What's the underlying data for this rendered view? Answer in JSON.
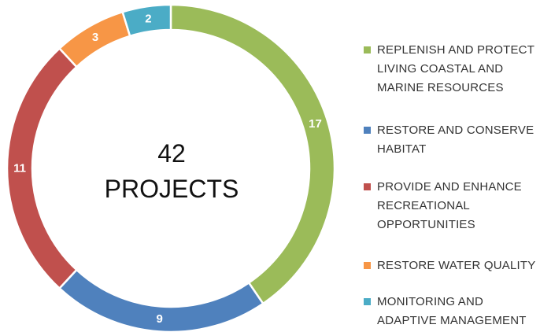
{
  "chart_data": {
    "type": "donut",
    "center_value": 42,
    "center_label": "PROJECTS",
    "categories": [
      "REPLENISH AND PROTECT LIVING COASTAL AND MARINE RESOURCES",
      "RESTORE AND CONSERVE HABITAT",
      "PROVIDE AND ENHANCE RECREATIONAL OPPORTUNITIES",
      "RESTORE WATER QUALITY",
      "MONITORING AND ADAPTIVE MANAGEMENT"
    ],
    "values": [
      17,
      9,
      11,
      3,
      2
    ],
    "colors": [
      "#9bbb59",
      "#4f81bd",
      "#c0504d",
      "#f79646",
      "#4bacc6"
    ],
    "legend": "right"
  }
}
